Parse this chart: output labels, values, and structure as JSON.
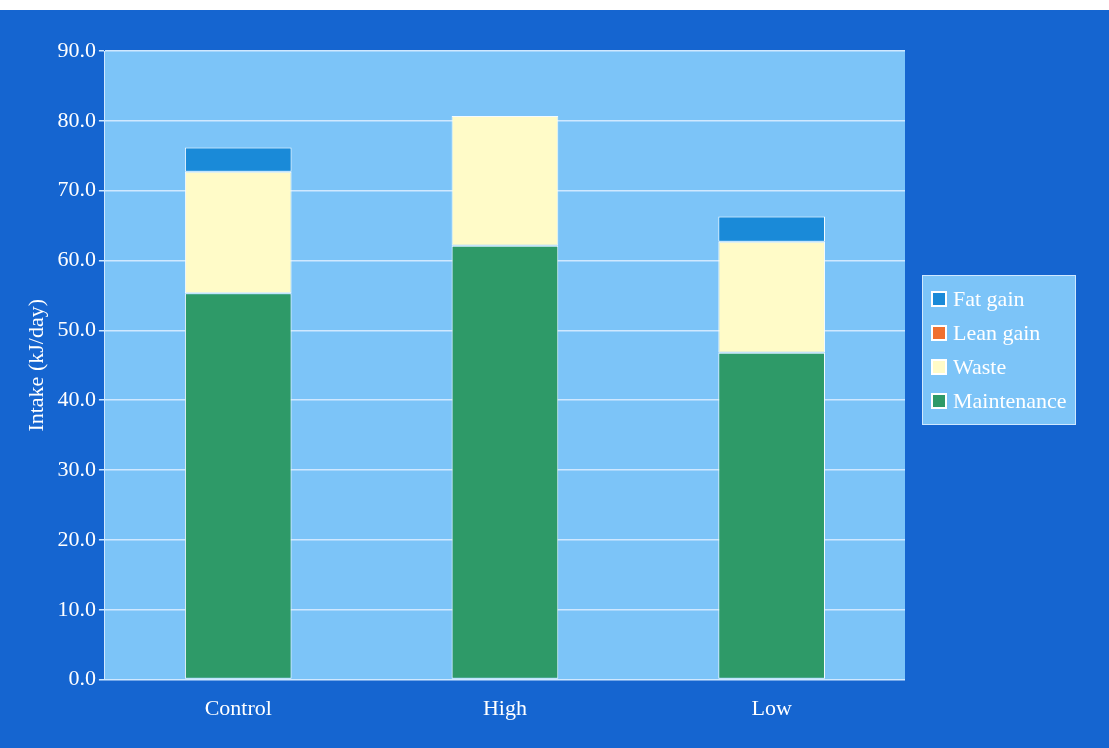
{
  "chart_data": {
    "type": "bar",
    "stacked": true,
    "ylabel": "Intake (kJ/day)",
    "categories": [
      "Control",
      "High",
      "Low"
    ],
    "series": [
      {
        "name": "Maintenance",
        "color": "#2e9a68",
        "values": [
          55.3,
          62.1,
          46.8
        ]
      },
      {
        "name": "Waste",
        "color": "#fffbc8",
        "values": [
          17.4,
          18.6,
          15.9
        ]
      },
      {
        "name": "Lean gain",
        "color": "#f07030",
        "values": [
          null,
          null,
          null
        ]
      },
      {
        "name": "Fat gain",
        "color": "#1a8ad8",
        "values": [
          3.5,
          null,
          3.6
        ]
      }
    ],
    "ylim": [
      0,
      90
    ],
    "yticks": [
      {
        "value": 0,
        "label": "0.0"
      },
      {
        "value": 10,
        "label": "10.0"
      },
      {
        "value": 20,
        "label": "20.0"
      },
      {
        "value": 30,
        "label": "30.0"
      },
      {
        "value": 40,
        "label": "40.0"
      },
      {
        "value": 50,
        "label": "50.0"
      },
      {
        "value": 60,
        "label": "60.0"
      },
      {
        "value": 70,
        "label": "70.0"
      },
      {
        "value": 80,
        "label": "80.0"
      },
      {
        "value": 90,
        "label": "90.0"
      }
    ],
    "grid": "y",
    "legend": "right"
  }
}
